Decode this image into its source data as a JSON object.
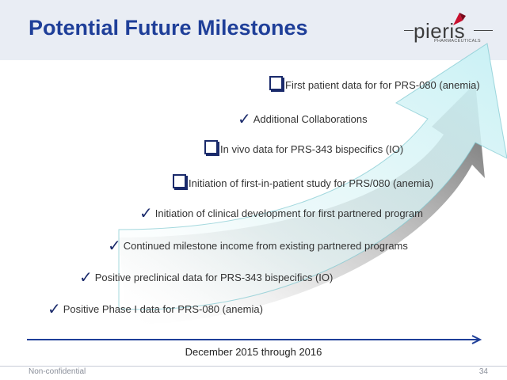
{
  "header": {
    "title": "Potential Future Milestones"
  },
  "logo": {
    "word": "pieris",
    "sub": "PHARMACEUTICALS"
  },
  "milestones": [
    {
      "marker": "box",
      "text": "First patient data for for PRS-080 (anemia)"
    },
    {
      "marker": "check",
      "text": "Additional Collaborations"
    },
    {
      "marker": "box",
      "text": "In vivo data for PRS-343 bispecifics (IO)"
    },
    {
      "marker": "box",
      "text": "Initiation of first-in-patient study for PRS/080 (anemia)"
    },
    {
      "marker": "check",
      "text": "Initiation of clinical development for first partnered program"
    },
    {
      "marker": "check",
      "text": "Continued milestone income from existing partnered programs"
    },
    {
      "marker": "check",
      "text": "Positive preclinical data for PRS-343 bispecifics (IO)"
    },
    {
      "marker": "check",
      "text": "Positive Phase I data for PRS-080 (anemia)"
    }
  ],
  "timeline": {
    "label": "December 2015 through 2016"
  },
  "footer": {
    "left": "Non-confidential",
    "page": "34"
  },
  "colors": {
    "title": "#1f3f99",
    "marker": "#1a2a6b",
    "arrow": "#d6f6f8"
  }
}
